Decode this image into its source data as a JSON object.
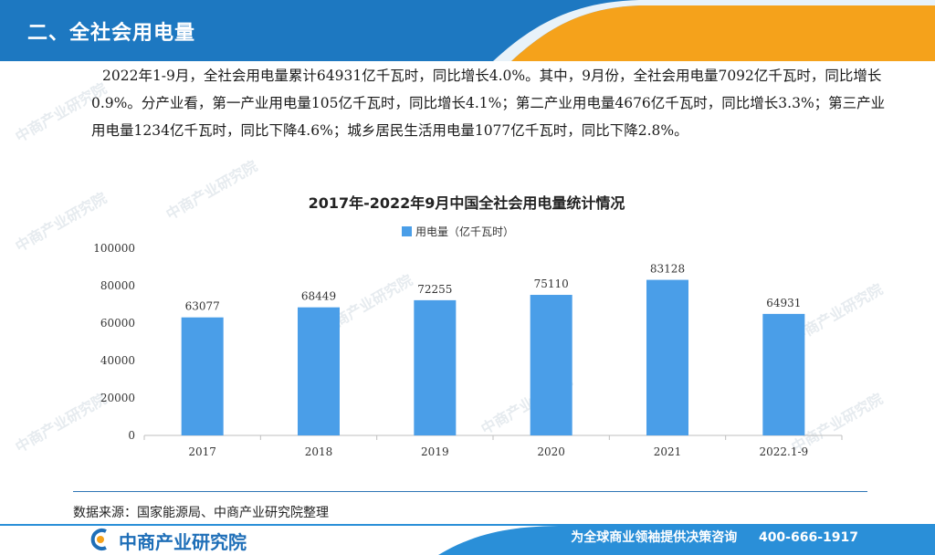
{
  "header": {
    "title": "二、全社会用电量"
  },
  "body": {
    "paragraph": "2022年1-9月，全社会用电量累计64931亿千瓦时，同比增长4.0%。其中，9月份，全社会用电量7092亿千瓦时，同比增长0.9%。分产业看，第一产业用电量105亿千瓦时，同比增长4.1%；第二产业用电量4676亿千瓦时，同比增长3.3%；第三产业用电量1234亿千瓦时，同比下降4.6%；城乡居民生活用电量1077亿千瓦时，同比下降2.8%。"
  },
  "chart_data": {
    "type": "bar",
    "title": "2017年-2022年9月中国全社会用电量统计情况",
    "categories": [
      "2017",
      "2018",
      "2019",
      "2020",
      "2021",
      "2022.1-9"
    ],
    "series": [
      {
        "name": "用电量（亿千瓦时）",
        "values": [
          63077,
          68449,
          72255,
          75110,
          83128,
          64931
        ],
        "color": "#4a9ee8"
      }
    ],
    "ylim": [
      0,
      100000
    ],
    "yticks": [
      "100000",
      "80000",
      "60000",
      "40000",
      "20000",
      "0"
    ],
    "ytick_values": [
      100000,
      80000,
      60000,
      40000,
      20000,
      0
    ],
    "legend_position": "top-center",
    "grid": false
  },
  "source": {
    "text": "数据来源：国家能源局、中商产业研究院整理"
  },
  "footer": {
    "logo_text": "中商产业研究院",
    "slogan": "为全球商业领袖提供决策咨询",
    "phone": "400-666-1917"
  },
  "watermark": {
    "text": "中商产业研究院"
  },
  "colors": {
    "header_blue": "#1d78c1",
    "header_orange": "#f5a21b",
    "bar": "#4a9ee8",
    "footer_blue": "#2a8fd8"
  }
}
